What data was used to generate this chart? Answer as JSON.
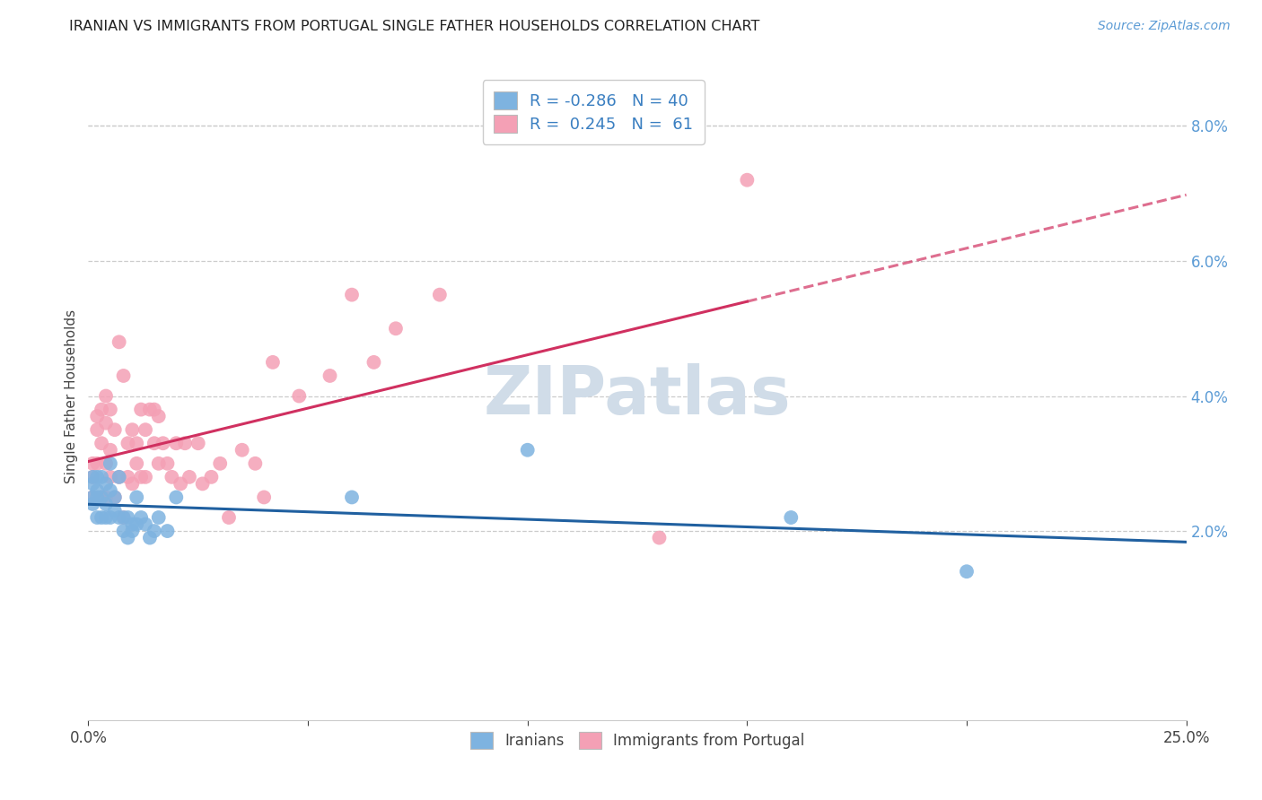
{
  "title": "IRANIAN VS IMMIGRANTS FROM PORTUGAL SINGLE FATHER HOUSEHOLDS CORRELATION CHART",
  "source": "Source: ZipAtlas.com",
  "ylabel": "Single Father Households",
  "ylabel_right_ticks": [
    "8.0%",
    "6.0%",
    "4.0%",
    "2.0%"
  ],
  "ylabel_right_values": [
    0.08,
    0.06,
    0.04,
    0.02
  ],
  "xmin": 0.0,
  "xmax": 0.25,
  "ymin": -0.008,
  "ymax": 0.088,
  "legend_blue_r": "-0.286",
  "legend_blue_n": "40",
  "legend_pink_r": "0.245",
  "legend_pink_n": "61",
  "blue_color": "#7eb3e0",
  "pink_color": "#f4a0b5",
  "blue_line_color": "#2060a0",
  "pink_line_color": "#d03060",
  "grid_color": "#cccccc",
  "watermark_color": "#d0dce8",
  "blue_scatter_x": [
    0.001,
    0.001,
    0.001,
    0.001,
    0.002,
    0.002,
    0.002,
    0.002,
    0.003,
    0.003,
    0.003,
    0.004,
    0.004,
    0.004,
    0.005,
    0.005,
    0.005,
    0.006,
    0.006,
    0.007,
    0.007,
    0.008,
    0.008,
    0.009,
    0.009,
    0.01,
    0.01,
    0.011,
    0.011,
    0.012,
    0.013,
    0.014,
    0.015,
    0.016,
    0.018,
    0.02,
    0.06,
    0.1,
    0.16,
    0.2
  ],
  "blue_scatter_y": [
    0.027,
    0.025,
    0.024,
    0.028,
    0.026,
    0.022,
    0.028,
    0.025,
    0.025,
    0.028,
    0.022,
    0.027,
    0.024,
    0.022,
    0.03,
    0.026,
    0.022,
    0.025,
    0.023,
    0.028,
    0.022,
    0.02,
    0.022,
    0.022,
    0.019,
    0.021,
    0.02,
    0.025,
    0.021,
    0.022,
    0.021,
    0.019,
    0.02,
    0.022,
    0.02,
    0.025,
    0.025,
    0.032,
    0.022,
    0.014
  ],
  "pink_scatter_x": [
    0.001,
    0.001,
    0.001,
    0.002,
    0.002,
    0.002,
    0.003,
    0.003,
    0.003,
    0.004,
    0.004,
    0.004,
    0.004,
    0.005,
    0.005,
    0.005,
    0.006,
    0.006,
    0.007,
    0.007,
    0.008,
    0.008,
    0.009,
    0.009,
    0.01,
    0.01,
    0.011,
    0.011,
    0.012,
    0.012,
    0.013,
    0.013,
    0.014,
    0.015,
    0.015,
    0.016,
    0.016,
    0.017,
    0.018,
    0.019,
    0.02,
    0.021,
    0.022,
    0.023,
    0.025,
    0.026,
    0.028,
    0.03,
    0.032,
    0.035,
    0.038,
    0.04,
    0.042,
    0.048,
    0.055,
    0.06,
    0.065,
    0.07,
    0.08,
    0.13,
    0.15
  ],
  "pink_scatter_y": [
    0.028,
    0.025,
    0.03,
    0.035,
    0.037,
    0.03,
    0.038,
    0.033,
    0.025,
    0.04,
    0.036,
    0.03,
    0.025,
    0.038,
    0.028,
    0.032,
    0.035,
    0.025,
    0.048,
    0.028,
    0.043,
    0.022,
    0.033,
    0.028,
    0.027,
    0.035,
    0.033,
    0.03,
    0.038,
    0.028,
    0.035,
    0.028,
    0.038,
    0.038,
    0.033,
    0.03,
    0.037,
    0.033,
    0.03,
    0.028,
    0.033,
    0.027,
    0.033,
    0.028,
    0.033,
    0.027,
    0.028,
    0.03,
    0.022,
    0.032,
    0.03,
    0.025,
    0.045,
    0.04,
    0.043,
    0.055,
    0.045,
    0.05,
    0.055,
    0.019,
    0.072
  ]
}
